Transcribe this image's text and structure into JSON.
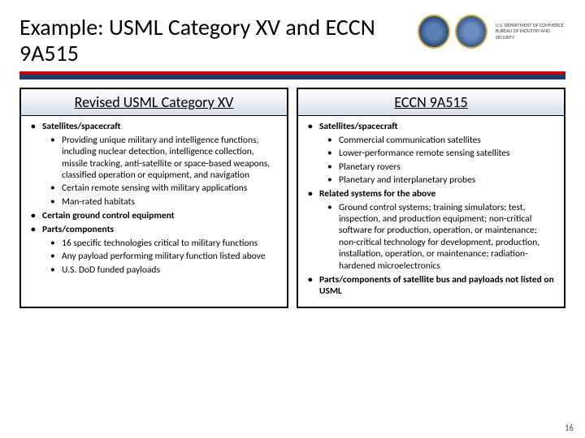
{
  "title": "Example: USML Category XV and ECCN 9A515",
  "dept_line1": "U.S. DEPARTMENT OF COMMERCE",
  "dept_line2": "BUREAU OF INDUSTRY AND SECURITY",
  "left": {
    "header": "Revised USML Category XV",
    "items": [
      {
        "text": "Satellites/spacecraft",
        "sub": [
          "Providing unique military and intelligence functions, including nuclear detection, intelligence collection, missile tracking, anti-satellite or space-based weapons, classified operation or equipment, and navigation",
          "Certain remote sensing with military applications",
          "Man-rated habitats"
        ]
      },
      {
        "text": "Certain ground control equipment",
        "sub": []
      },
      {
        "text": "Parts/components",
        "sub": [
          "16 specific technologies critical to military functions",
          "Any payload performing military function listed above",
          "U.S. DoD funded payloads"
        ]
      }
    ]
  },
  "right": {
    "header": "ECCN 9A515",
    "items": [
      {
        "text": "Satellites/spacecraft",
        "sub": [
          "Commercial communication satellites",
          "Lower-performance remote sensing satellites",
          "Planetary rovers",
          "Planetary and interplanetary probes"
        ]
      },
      {
        "text": "Related systems for the above",
        "sub": [
          "Ground control systems; training simulators; test, inspection, and production equipment; non-critical software for production, operation, or maintenance; non-critical technology for development, production, installation, operation, or maintenance; radiation-hardened microelectronics"
        ]
      },
      {
        "text": "Parts/components of satellite bus and payloads not listed on USML",
        "sub": []
      }
    ]
  },
  "page_number": "16",
  "colors": {
    "red": "#c00000",
    "blue": "#1f3a6b"
  }
}
